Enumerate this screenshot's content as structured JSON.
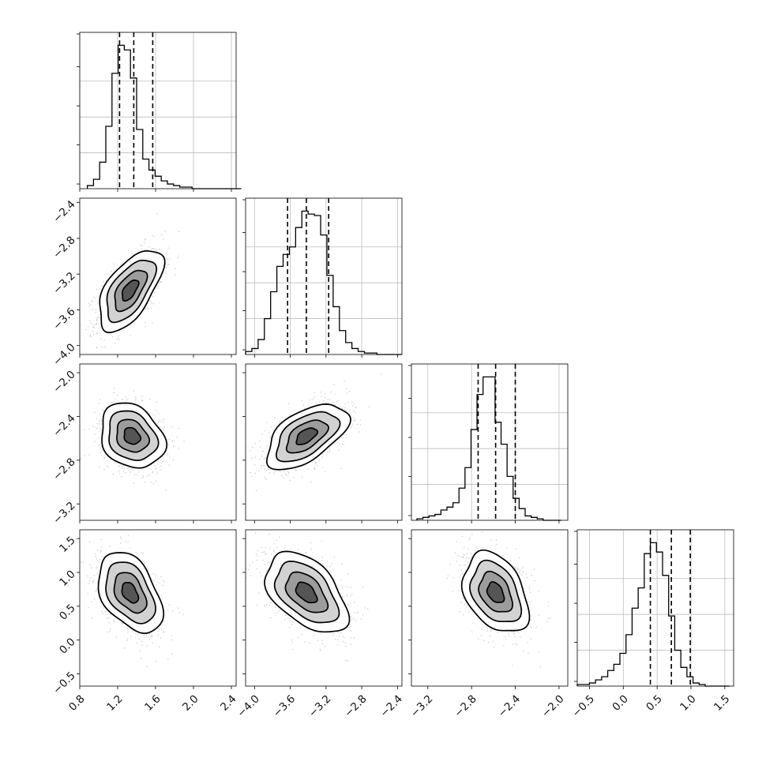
{
  "chart_data": {
    "type": "corner",
    "parameters": [
      "",
      "",
      "",
      ""
    ],
    "ranges": [
      [
        0.8,
        2.45
      ],
      [
        -4.1,
        -2.35
      ],
      [
        -3.35,
        -1.92
      ],
      [
        -0.68,
        1.63
      ]
    ],
    "ticks": [
      [
        "0.8",
        "1.2",
        "1.6",
        "2.0",
        "2.4"
      ],
      [
        "−4.0",
        "−3.6",
        "−3.2",
        "−2.8",
        "−2.4"
      ],
      [
        "−3.2",
        "−2.8",
        "−2.4",
        "−2.0"
      ],
      [
        "−0.5",
        "0.0",
        "0.5",
        "1.0",
        "1.5"
      ]
    ],
    "quantiles": [
      [
        1.22,
        1.37,
        1.57
      ],
      [
        -3.63,
        -3.42,
        -3.17
      ],
      [
        -2.74,
        -2.58,
        -2.4
      ],
      [
        0.4,
        0.71,
        0.99
      ]
    ],
    "histograms": [
      {
        "bin_start": 0.88,
        "bin_width": 0.065,
        "counts": [
          2,
          6,
          17,
          40,
          74,
          92,
          89,
          71,
          38,
          19,
          12,
          8,
          5,
          3,
          2,
          1,
          1,
          0,
          0,
          0,
          0,
          0,
          0,
          0,
          0
        ]
      },
      {
        "bin_start": -4.1,
        "bin_width": 0.07,
        "counts": [
          2,
          4,
          10,
          24,
          42,
          59,
          67,
          72,
          85,
          96,
          94,
          93,
          80,
          53,
          32,
          16,
          8,
          4,
          2,
          1,
          1,
          0,
          0,
          0,
          0
        ]
      },
      {
        "bin_start": -3.3,
        "bin_width": 0.055,
        "counts": [
          1,
          2,
          3,
          4,
          7,
          9,
          12,
          22,
          36,
          62,
          86,
          98,
          98,
          67,
          52,
          30,
          15,
          8,
          3,
          2,
          1,
          0,
          0,
          0
        ]
      },
      {
        "bin_start": -0.68,
        "bin_width": 0.09,
        "counts": [
          1,
          1,
          2,
          4,
          6,
          10,
          14,
          21,
          33,
          50,
          63,
          85,
          92,
          86,
          71,
          45,
          23,
          12,
          6,
          2,
          1,
          0,
          0,
          0,
          0
        ]
      }
    ],
    "pairs": [
      {
        "row": 1,
        "col": 0,
        "mean": [
          1.33,
          -3.38
        ],
        "sd": [
          0.17,
          0.23
        ],
        "rho": 0.6
      },
      {
        "row": 2,
        "col": 0,
        "mean": [
          1.35,
          -2.58
        ],
        "sd": [
          0.17,
          0.15
        ],
        "rho": -0.22
      },
      {
        "row": 2,
        "col": 1,
        "mean": [
          -3.42,
          -2.58
        ],
        "sd": [
          0.23,
          0.15
        ],
        "rho": 0.55
      },
      {
        "row": 3,
        "col": 0,
        "mean": [
          1.33,
          0.7
        ],
        "sd": [
          0.17,
          0.3
        ],
        "rho": -0.42
      },
      {
        "row": 3,
        "col": 1,
        "mean": [
          -3.42,
          0.7
        ],
        "sd": [
          0.23,
          0.3
        ],
        "rho": -0.48
      },
      {
        "row": 3,
        "col": 2,
        "mean": [
          -2.58,
          0.7
        ],
        "sd": [
          0.15,
          0.3
        ],
        "rho": -0.35
      }
    ],
    "contour_levels": [
      0.12,
      0.39,
      0.68,
      0.86
    ],
    "grid": true,
    "colors": {
      "line": "#000000",
      "scatter": "#9a9a9a",
      "grid": "#bdbdbd"
    }
  }
}
